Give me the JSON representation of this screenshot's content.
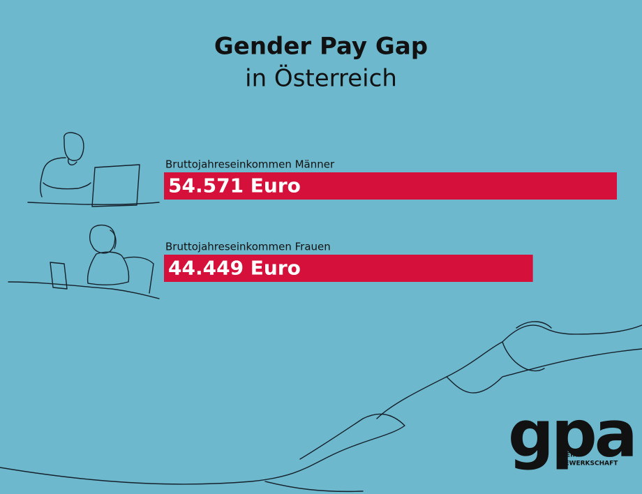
{
  "chart_data": {
    "type": "bar",
    "orientation": "horizontal",
    "title": "Gender Pay Gap",
    "subtitle": "in Österreich",
    "categories": [
      "Bruttojahreseinkommen Männer",
      "Bruttojahreseinkommen Frauen"
    ],
    "values": [
      54571,
      44449
    ],
    "value_labels": [
      "54.571 Euro",
      "44.449 Euro"
    ],
    "color": "#d5103a"
  },
  "logo": {
    "text": "gpa",
    "tagline": [
      "MEINE",
      "GEWERKSCHAFT"
    ]
  }
}
